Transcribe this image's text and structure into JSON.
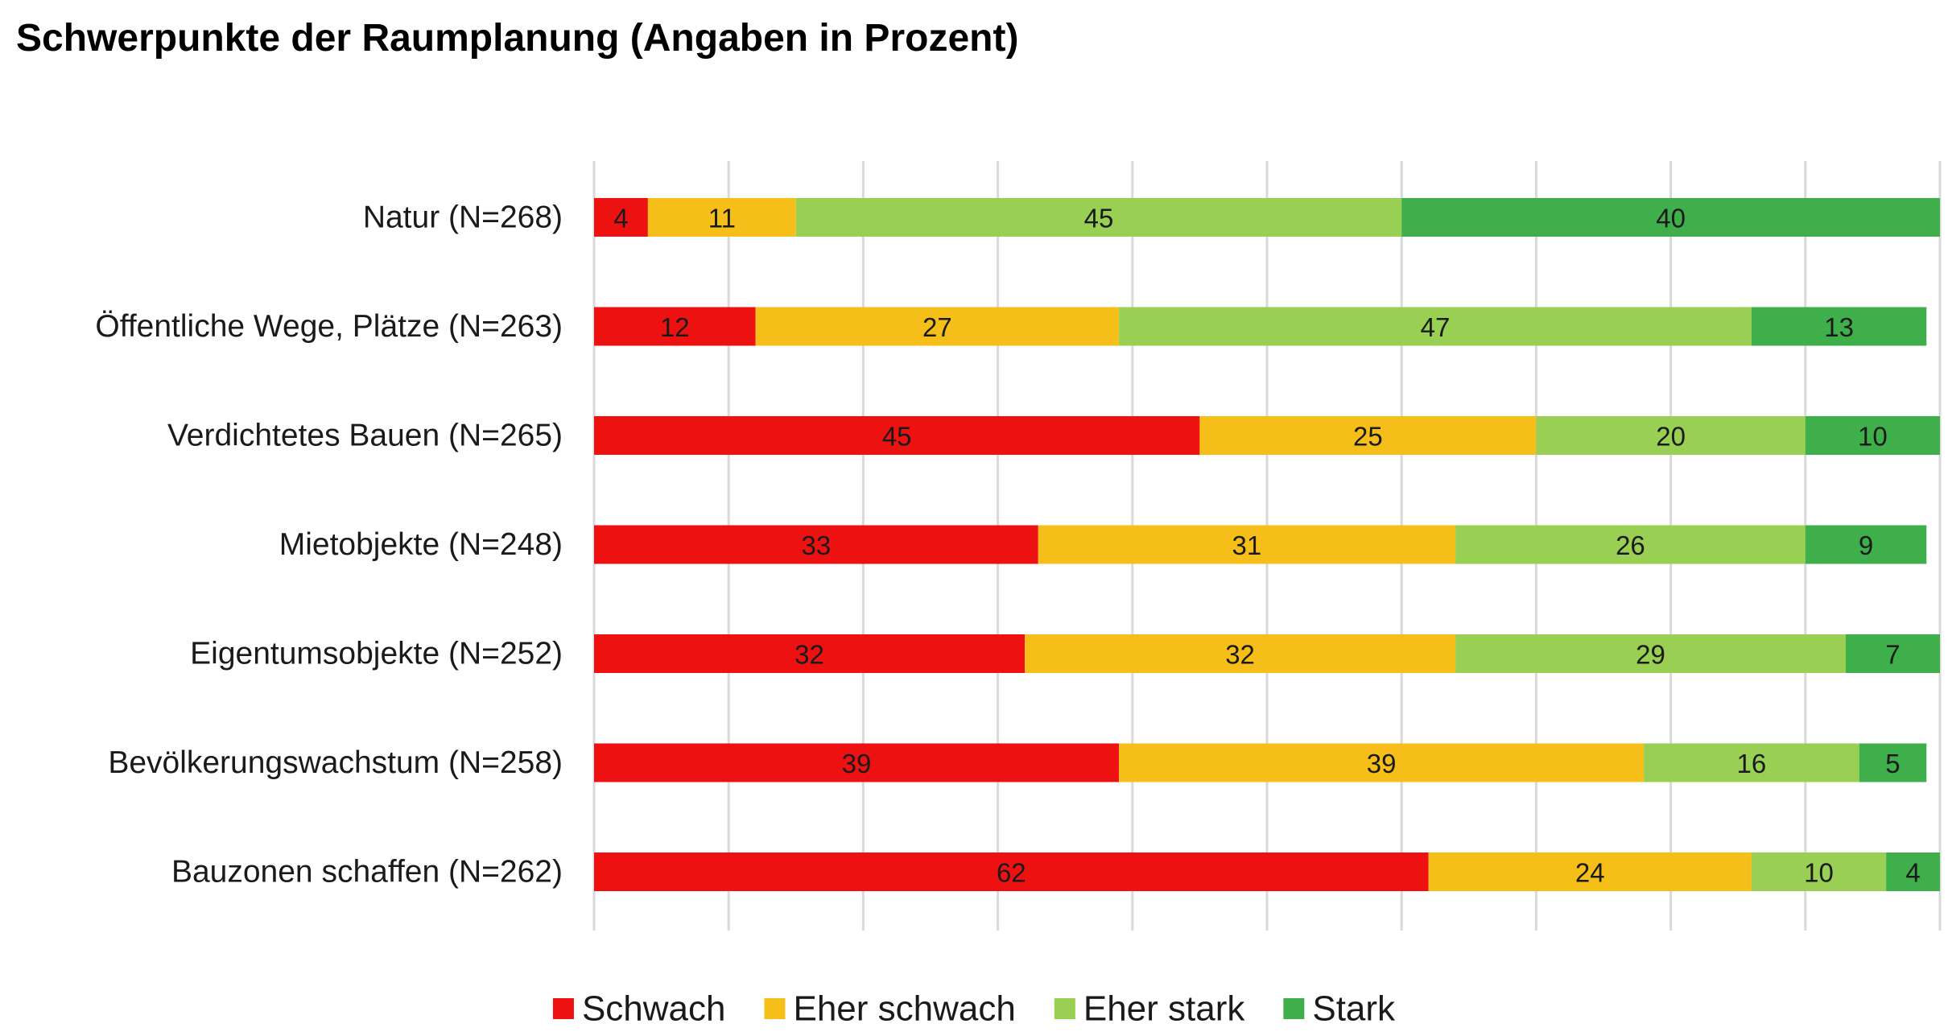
{
  "chart_data": {
    "type": "bar",
    "orientation": "horizontal",
    "stacked": true,
    "title": "Schwerpunkte der Raumplanung (Angaben in Prozent)",
    "xlabel": "",
    "ylabel": "",
    "xlim": [
      0,
      100
    ],
    "grid": true,
    "legend_position": "bottom",
    "categories": [
      "Natur (N=268)",
      "Öffentliche Wege, Plätze (N=263)",
      "Verdichtetes Bauen (N=265)",
      "Mietobjekte (N=248)",
      "Eigentumsobjekte (N=252)",
      "Bevölkerungswachstum (N=258)",
      "Bauzonen schaffen (N=262)"
    ],
    "series": [
      {
        "name": "Schwach",
        "color": "#ee1111",
        "values": [
          4,
          12,
          45,
          33,
          32,
          39,
          62
        ]
      },
      {
        "name": "Eher schwach",
        "color": "#f5be18",
        "values": [
          11,
          27,
          25,
          31,
          32,
          39,
          24
        ]
      },
      {
        "name": "Eher stark",
        "color": "#99cf52",
        "values": [
          45,
          47,
          20,
          26,
          29,
          16,
          10
        ]
      },
      {
        "name": "Stark",
        "color": "#3faf4c",
        "values": [
          40,
          13,
          10,
          9,
          7,
          5,
          4
        ]
      }
    ]
  }
}
